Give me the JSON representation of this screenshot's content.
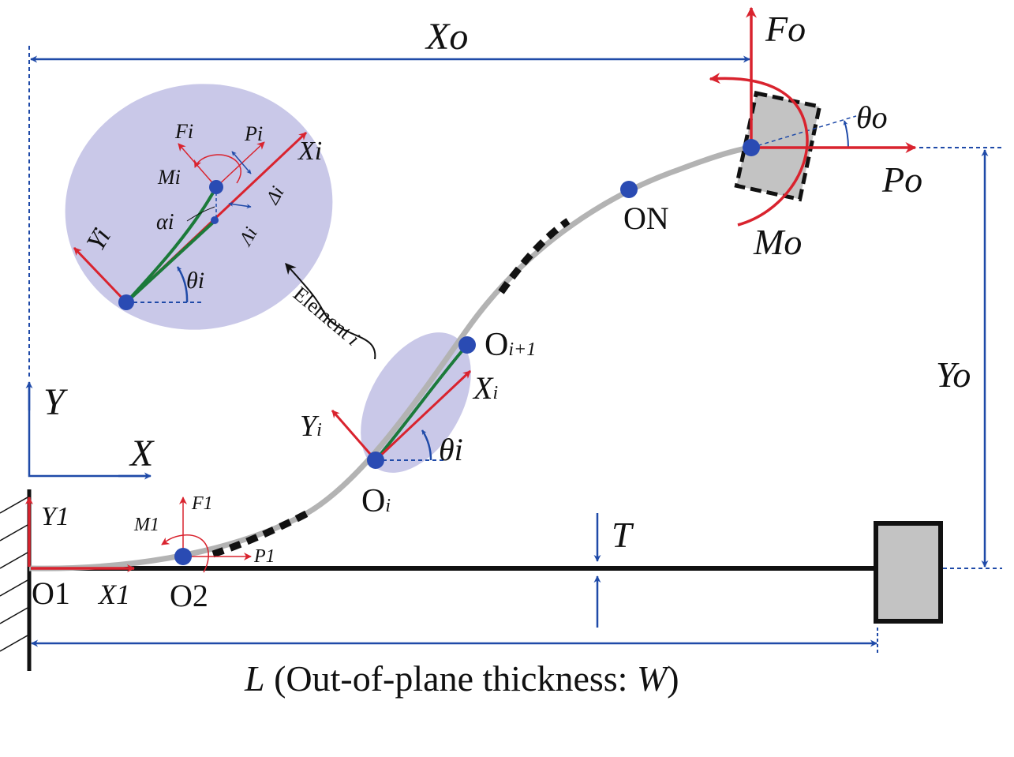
{
  "colors": {
    "blue": "#1f4aa8",
    "red": "#d9232e",
    "green": "#1b7a3a",
    "gray_beam": "#b3b3b3",
    "ellipse_fill": "#c9c8e8",
    "block_fill": "#c3c3c3",
    "node": "#2a4bb3"
  },
  "labels": {
    "Xo": "Xo",
    "Fo": "Fo",
    "theta_o": "θo",
    "Po": "Po",
    "Mo": "Mo",
    "Yo": "Yo",
    "ON": "ON",
    "Oi1_main": "O",
    "Oi1_sub": "i+1",
    "Oi_main": "O",
    "Oi_sub": "i",
    "Xi_main": "X",
    "Xi_sub": "i",
    "Yi_main": "Y",
    "Yi_sub": "i",
    "theta_i": "θi",
    "Y": "Y",
    "X": "X",
    "T": "T",
    "O1": "O1",
    "X1": "X1",
    "Y1": "Y1",
    "O2": "O2",
    "F1": "F1",
    "M1": "M1",
    "P1": "P1",
    "element_main": "Element",
    "element_sub": "i",
    "inset_Fi": "Fi",
    "inset_Pi": "Pi",
    "inset_Xi": "Xi",
    "inset_Mi": "Mi",
    "inset_delta": "Δi",
    "inset_alpha": "αi",
    "inset_lambda": "Λi",
    "inset_Yi": "Yi",
    "inset_theta": "θi",
    "caption_L": "L",
    "caption_text": " (Out-of-plane thickness: ",
    "caption_W": "W",
    "caption_close": ")"
  }
}
